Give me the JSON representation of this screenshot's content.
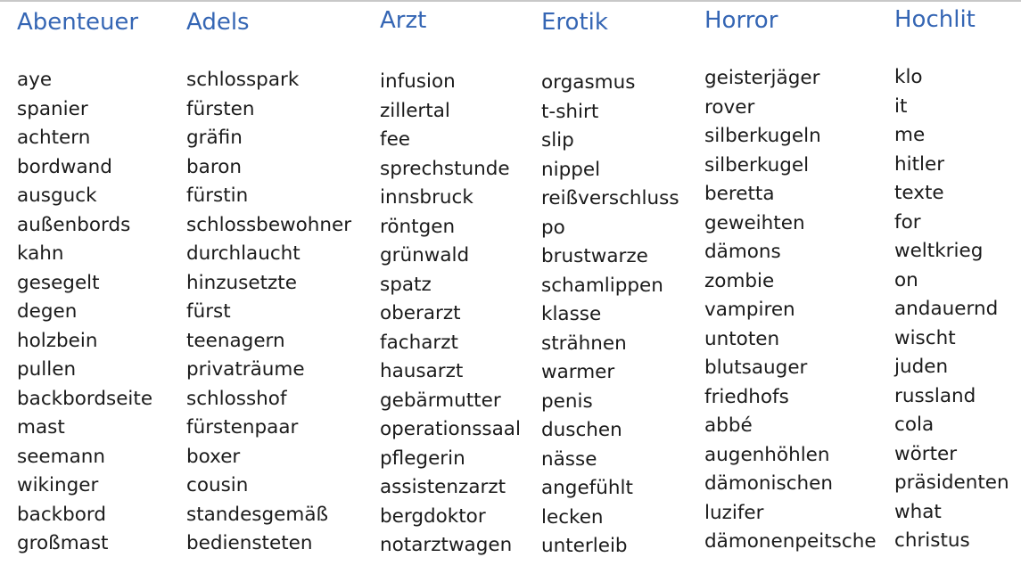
{
  "columns": [
    {
      "heading": "Abenteuer",
      "words": [
        "aye",
        "spanier",
        "achtern",
        "bordwand",
        "ausguck",
        "außenbords",
        "kahn",
        "gesegelt",
        "degen",
        "holzbein",
        "pullen",
        "backbordseite",
        "mast",
        "seemann",
        "wikinger",
        "backbord",
        "großmast"
      ]
    },
    {
      "heading": "Adels",
      "words": [
        "schlosspark",
        "fürsten",
        "gräfin",
        "baron",
        "fürstin",
        "schlossbewohner",
        "durchlaucht",
        "hinzusetzte",
        "fürst",
        "teenagern",
        "privaträume",
        "schlosshof",
        "fürstenpaar",
        "boxer",
        "cousin",
        "standesgemäß",
        "bediensteten"
      ]
    },
    {
      "heading": "Arzt",
      "words": [
        "infusion",
        "zillertal",
        "fee",
        "sprechstunde",
        "innsbruck",
        "röntgen",
        "grünwald",
        "spatz",
        "oberarzt",
        "facharzt",
        "hausarzt",
        "gebärmutter",
        "operationssaal",
        "pflegerin",
        "assistenzarzt",
        "bergdoktor",
        "notarztwagen"
      ]
    },
    {
      "heading": "Erotik",
      "words": [
        "orgasmus",
        "t-shirt",
        "slip",
        "nippel",
        "reißverschluss",
        "po",
        "brustwarze",
        "schamlippen",
        "klasse",
        "strähnen",
        "warmer",
        "penis",
        "duschen",
        "nässe",
        "angefühlt",
        "lecken",
        "unterleib"
      ]
    },
    {
      "heading": "Horror",
      "words": [
        "geisterjäger",
        "rover",
        "silberkugeln",
        "silberkugel",
        "beretta",
        "geweihten",
        "dämons",
        "zombie",
        "vampiren",
        "untoten",
        "blutsauger",
        "friedhofs",
        "abbé",
        "augenhöhlen",
        "dämonischen",
        "luzifer",
        "dämonenpeitsche"
      ]
    },
    {
      "heading": "Hochlit",
      "words": [
        "klo",
        "it",
        "me",
        "hitler",
        "texte",
        "for",
        "weltkrieg",
        "on",
        "andauernd",
        "wischt",
        "juden",
        "russland",
        "cola",
        "wörter",
        "präsidenten",
        "what",
        "christus"
      ]
    }
  ]
}
